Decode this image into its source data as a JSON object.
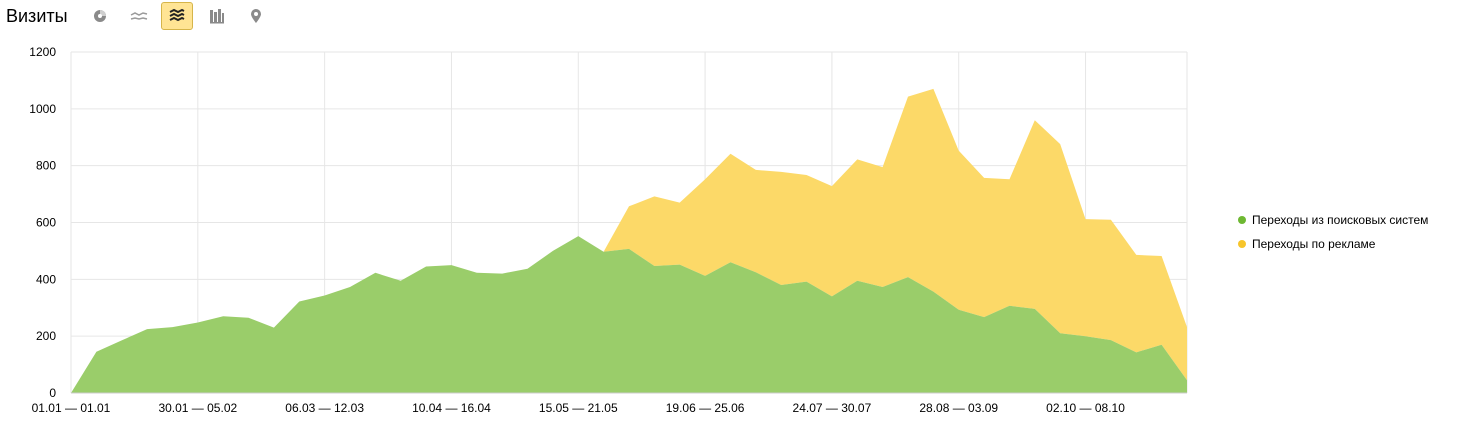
{
  "header": {
    "title": "Визиты",
    "tools": [
      {
        "icon": "pie-chart-icon",
        "active": false
      },
      {
        "icon": "line-chart-icon",
        "active": false
      },
      {
        "icon": "stacked-area-icon",
        "active": true
      },
      {
        "icon": "bar-chart-icon",
        "active": false
      },
      {
        "icon": "map-pin-icon",
        "active": false
      }
    ]
  },
  "colors": {
    "green": "#9acd6a",
    "yellow": "#fcd968",
    "green_dot": "#6eb832",
    "yellow_dot": "#f7c52b",
    "grid": "#e6e6e6",
    "active_tool": "#ffe494"
  },
  "chart_data": {
    "type": "area",
    "stacked": true,
    "ylim": [
      0,
      1200
    ],
    "yticks": [
      0,
      200,
      400,
      600,
      800,
      1000,
      1200
    ],
    "grid": true,
    "legend_position": "right",
    "xtick_labels": [
      "01.01 — 01.01",
      "30.01 — 05.02",
      "06.03 — 12.03",
      "10.04 — 16.04",
      "15.05 — 21.05",
      "19.06 — 25.06",
      "24.07 — 30.07",
      "28.08 — 03.09",
      "02.10 — 08.10"
    ],
    "series": [
      {
        "name": "Переходы из поисковых систем",
        "values": [
          0,
          145,
          185,
          225,
          232,
          248,
          270,
          265,
          230,
          322,
          343,
          373,
          423,
          395,
          445,
          450,
          423,
          420,
          437,
          500,
          552,
          497,
          507,
          447,
          452,
          412,
          460,
          425,
          380,
          392,
          340,
          395,
          373,
          408,
          357,
          293,
          267,
          307,
          296,
          210,
          200,
          186,
          143,
          170,
          45
        ]
      },
      {
        "name": "Переходы по рекламе",
        "values": [
          0,
          0,
          0,
          0,
          0,
          0,
          0,
          0,
          0,
          0,
          0,
          0,
          0,
          0,
          0,
          0,
          0,
          0,
          0,
          0,
          0,
          0,
          150,
          245,
          218,
          340,
          382,
          360,
          398,
          375,
          388,
          427,
          422,
          635,
          713,
          560,
          490,
          445,
          664,
          666,
          412,
          424,
          343,
          312,
          187
        ]
      }
    ]
  }
}
